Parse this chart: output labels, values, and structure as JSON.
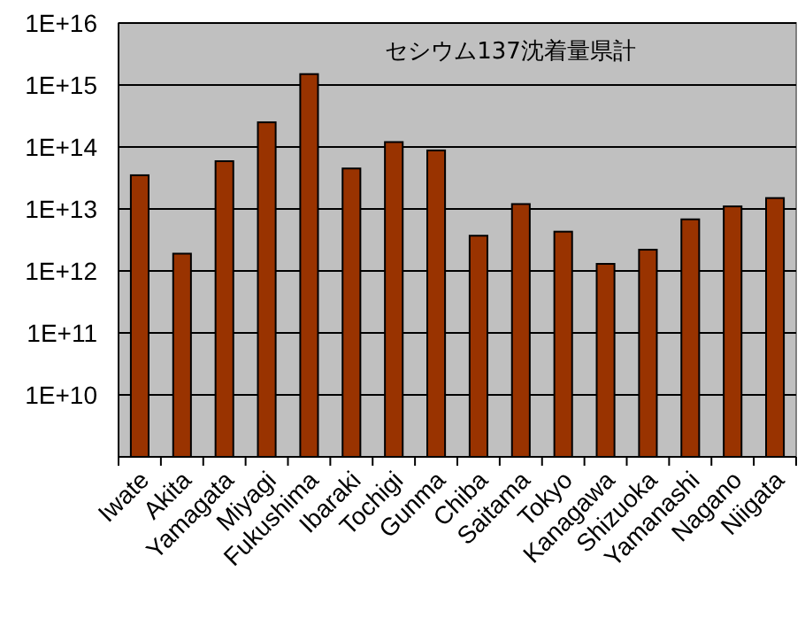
{
  "chart_data": {
    "type": "bar",
    "title": "セシウム137沈着量県計",
    "categories": [
      "Iwate",
      "Akita",
      "Yamagata",
      "Miyagi",
      "Fukushima",
      "Ibaraki",
      "Tochigi",
      "Gunma",
      "Chiba",
      "Saitama",
      "Tokyo",
      "Kanagawa",
      "Shizuoka",
      "Yamanashi",
      "Nagano",
      "Niigata"
    ],
    "values": [
      35000000000000.0,
      1900000000000.0,
      59000000000000.0,
      250000000000000.0,
      1500000000000000.0,
      45000000000000.0,
      120000000000000.0,
      88000000000000.0,
      3700000000000.0,
      12000000000000.0,
      4300000000000.0,
      1300000000000.0,
      2200000000000.0,
      6800000000000.0,
      11000000000000.0,
      15000000000000.0
    ],
    "color": "#993300",
    "log": true,
    "ylim": [
      1000000000.0,
      1e+16
    ],
    "yticks": [
      {
        "value": 1000000000.0,
        "label": null
      },
      {
        "value": 10000000000.0,
        "label": "1E+10"
      },
      {
        "value": 100000000000.0,
        "label": "1E+11"
      },
      {
        "value": 1000000000000.0,
        "label": "1E+12"
      },
      {
        "value": 10000000000000.0,
        "label": "1E+13"
      },
      {
        "value": 100000000000000.0,
        "label": "1E+14"
      },
      {
        "value": 1000000000000000.0,
        "label": "1E+15"
      },
      {
        "value": 1e+16,
        "label": "1E+16"
      }
    ],
    "grid": "y"
  }
}
